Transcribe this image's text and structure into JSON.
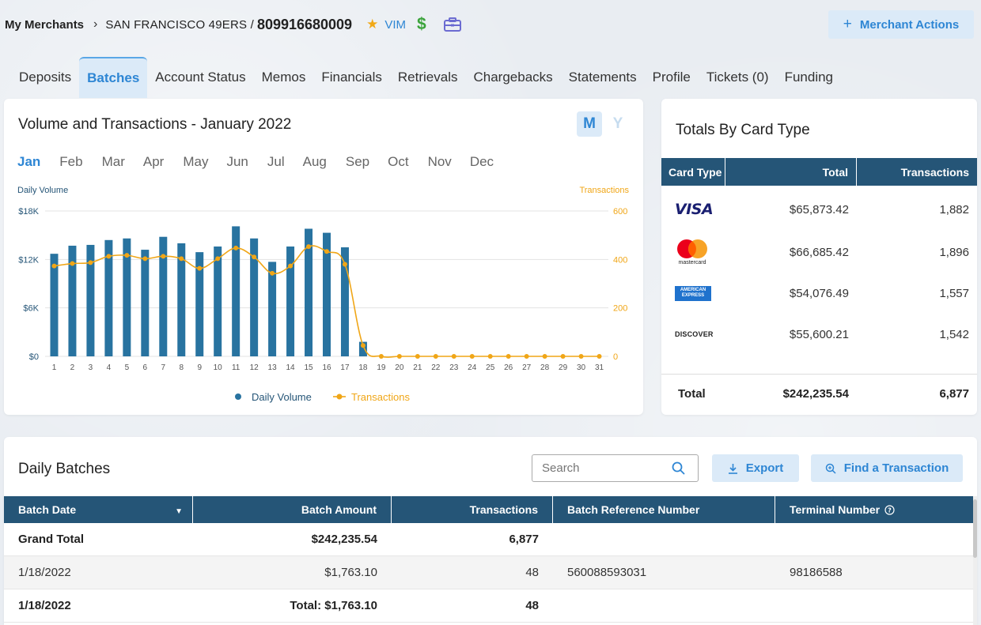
{
  "header": {
    "breadcrumb_root": "My Merchants",
    "merchant_name": "SAN FRANCISCO 49ERS /",
    "merchant_id": "809916680009",
    "vim_label": "VIM",
    "dollar_symbol": "$",
    "merchant_actions_label": "Merchant Actions",
    "plus_symbol": "+"
  },
  "tabs": [
    {
      "label": "Deposits"
    },
    {
      "label": "Batches"
    },
    {
      "label": "Account Status"
    },
    {
      "label": "Memos"
    },
    {
      "label": "Financials"
    },
    {
      "label": "Retrievals"
    },
    {
      "label": "Chargebacks"
    },
    {
      "label": "Statements"
    },
    {
      "label": "Profile"
    },
    {
      "label": "Tickets (0)"
    },
    {
      "label": "Funding"
    }
  ],
  "volume_card": {
    "title": "Volume and Transactions - January 2022",
    "toggle_m": "M",
    "toggle_y": "Y",
    "months": [
      "Jan",
      "Feb",
      "Mar",
      "Apr",
      "May",
      "Jun",
      "Jul",
      "Aug",
      "Sep",
      "Oct",
      "Nov",
      "Dec"
    ]
  },
  "chart_data": {
    "type": "bar",
    "title": "Volume and Transactions - January 2022",
    "ylabel_left": "Daily Volume",
    "ylabel_right": "Transactions",
    "categories": [
      "1",
      "2",
      "3",
      "4",
      "5",
      "6",
      "7",
      "8",
      "9",
      "10",
      "11",
      "12",
      "13",
      "14",
      "15",
      "16",
      "17",
      "18",
      "19",
      "20",
      "21",
      "22",
      "23",
      "24",
      "25",
      "26",
      "27",
      "28",
      "29",
      "30",
      "31"
    ],
    "y_left_ticks": [
      "$0",
      "$6K",
      "$12K",
      "$18K"
    ],
    "y_right_ticks": [
      "0",
      "200",
      "400",
      "600"
    ],
    "ylim_left": [
      0,
      18000
    ],
    "ylim_right": [
      0,
      600
    ],
    "series": [
      {
        "name": "Daily Volume",
        "type": "bar",
        "axis": "left",
        "values": [
          12700,
          13700,
          13800,
          14400,
          14600,
          13200,
          14800,
          14000,
          12900,
          13600,
          16100,
          14600,
          11700,
          13600,
          15800,
          15300,
          13500,
          1800,
          0,
          0,
          0,
          0,
          0,
          0,
          0,
          0,
          0,
          0,
          0,
          0,
          0
        ]
      },
      {
        "name": "Transactions",
        "type": "line",
        "axis": "right",
        "values": [
          373,
          383,
          387,
          413,
          417,
          403,
          413,
          403,
          363,
          403,
          447,
          410,
          343,
          373,
          453,
          433,
          380,
          45,
          0,
          0,
          0,
          0,
          0,
          0,
          0,
          0,
          0,
          0,
          0,
          0,
          0
        ]
      }
    ],
    "legend": [
      {
        "name": "Daily Volume",
        "color": "#2873a0"
      },
      {
        "name": "Transactions",
        "color": "#f0a617"
      }
    ],
    "legend_position": "bottom-center",
    "grid": true
  },
  "totals_card": {
    "title": "Totals By Card Type",
    "headers": {
      "card_type": "Card Type",
      "total": "Total",
      "transactions": "Transactions"
    },
    "rows": [
      {
        "card": "VISA",
        "total": "$65,873.42",
        "transactions": "1,882"
      },
      {
        "card": "mastercard",
        "total": "$66,685.42",
        "transactions": "1,896"
      },
      {
        "card": "AMERICAN EXPRESS",
        "total": "$54,076.49",
        "transactions": "1,557"
      },
      {
        "card": "DISCOVER",
        "total": "$55,600.21",
        "transactions": "1,542"
      }
    ],
    "footer": {
      "label": "Total",
      "total": "$242,235.54",
      "transactions": "6,877"
    }
  },
  "batches": {
    "title": "Daily Batches",
    "search_placeholder": "Search",
    "export_label": "Export",
    "find_label": "Find a Transaction",
    "headers": {
      "batch_date": "Batch Date",
      "batch_amount": "Batch Amount",
      "transactions": "Transactions",
      "batch_ref": "Batch Reference Number",
      "terminal": "Terminal Number"
    },
    "rows": [
      {
        "date": "Grand Total",
        "amount": "$242,235.54",
        "transactions": "6,877",
        "ref": "",
        "terminal": ""
      },
      {
        "date": "1/18/2022",
        "amount": "$1,763.10",
        "transactions": "48",
        "ref": "560088593031",
        "terminal": "98186588"
      },
      {
        "date": "1/18/2022",
        "amount": "Total: $1,763.10",
        "transactions": "48",
        "ref": "",
        "terminal": ""
      }
    ]
  },
  "colors": {
    "accent": "#2e86d4",
    "header_bg": "#255577",
    "bar": "#2873a0",
    "line": "#f0a617"
  }
}
